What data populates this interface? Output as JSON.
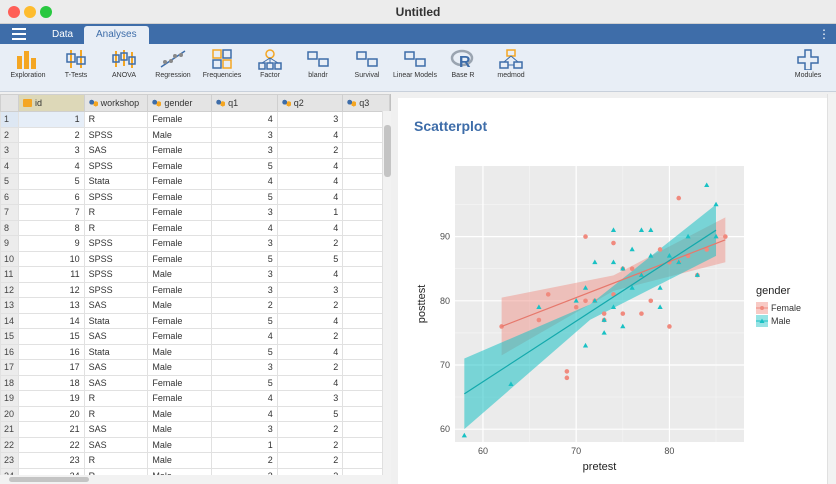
{
  "window": {
    "title": "Untitled",
    "traffic": [
      "#ff5f57",
      "#febc2e",
      "#28c840"
    ]
  },
  "topbar": {
    "tabs": [
      "Data",
      "Analyses"
    ],
    "active_tab": "Analyses",
    "accent": "#3e6da9"
  },
  "ribbon": {
    "items": [
      {
        "label": "Exploration",
        "icon": "bar-chart-icon"
      },
      {
        "label": "T-Tests",
        "icon": "t-test-icon"
      },
      {
        "label": "ANOVA",
        "icon": "anova-icon"
      },
      {
        "label": "Regression",
        "icon": "regression-icon"
      },
      {
        "label": "Frequencies",
        "icon": "frequencies-icon"
      },
      {
        "label": "Factor",
        "icon": "factor-icon"
      },
      {
        "label": "blandr",
        "icon": "blandr-icon"
      },
      {
        "label": "Survival",
        "icon": "survival-icon"
      },
      {
        "label": "Linear Models",
        "icon": "linear-models-icon"
      },
      {
        "label": "Base R",
        "icon": "r-logo-icon"
      },
      {
        "label": "medmod",
        "icon": "medmod-icon"
      }
    ],
    "modules_label": "Modules"
  },
  "grid": {
    "columns": [
      "id",
      "workshop",
      "gender",
      "q1",
      "q2",
      "q3"
    ],
    "rows": [
      [
        1,
        "R",
        "Female",
        4,
        3
      ],
      [
        2,
        "SPSS",
        "Male",
        3,
        4
      ],
      [
        3,
        "SAS",
        "Female",
        3,
        2
      ],
      [
        4,
        "SPSS",
        "Female",
        5,
        4
      ],
      [
        5,
        "Stata",
        "Female",
        4,
        4
      ],
      [
        6,
        "SPSS",
        "Female",
        5,
        4
      ],
      [
        7,
        "R",
        "Female",
        3,
        1
      ],
      [
        8,
        "R",
        "Female",
        4,
        4
      ],
      [
        9,
        "SPSS",
        "Female",
        3,
        2
      ],
      [
        10,
        "SPSS",
        "Female",
        5,
        5
      ],
      [
        11,
        "SPSS",
        "Male",
        3,
        4
      ],
      [
        12,
        "SPSS",
        "Female",
        3,
        3
      ],
      [
        13,
        "SAS",
        "Male",
        2,
        2
      ],
      [
        14,
        "Stata",
        "Female",
        5,
        4
      ],
      [
        15,
        "SAS",
        "Female",
        4,
        2
      ],
      [
        16,
        "Stata",
        "Male",
        5,
        4
      ],
      [
        17,
        "SAS",
        "Male",
        3,
        2
      ],
      [
        18,
        "SAS",
        "Female",
        5,
        4
      ],
      [
        19,
        "R",
        "Female",
        4,
        3
      ],
      [
        20,
        "R",
        "Male",
        4,
        5
      ],
      [
        21,
        "SAS",
        "Male",
        3,
        2
      ],
      [
        22,
        "SAS",
        "Male",
        1,
        2
      ],
      [
        23,
        "R",
        "Male",
        2,
        2
      ],
      [
        24,
        "R",
        "Male",
        3,
        2
      ]
    ]
  },
  "results": {
    "title": "Scatterplot"
  },
  "chart_data": {
    "type": "scatter",
    "xlabel": "pretest",
    "ylabel": "posttest",
    "xlim": [
      57,
      88
    ],
    "ylim": [
      58,
      101
    ],
    "xticks": [
      60,
      70,
      80
    ],
    "yticks": [
      60,
      70,
      80,
      90
    ],
    "legend_title": "gender",
    "legend_position": "right",
    "grid": true,
    "series": [
      {
        "name": "Female",
        "color": "#f08a7e",
        "marker": "circle",
        "points": [
          [
            62,
            76
          ],
          [
            66,
            77
          ],
          [
            67,
            81
          ],
          [
            69,
            69
          ],
          [
            69,
            68
          ],
          [
            70,
            79
          ],
          [
            71,
            90
          ],
          [
            71,
            80
          ],
          [
            72,
            80
          ],
          [
            73,
            77
          ],
          [
            73,
            78
          ],
          [
            74,
            89
          ],
          [
            74,
            81
          ],
          [
            75,
            85
          ],
          [
            75,
            78
          ],
          [
            76,
            85
          ],
          [
            77,
            84
          ],
          [
            77,
            78
          ],
          [
            78,
            80
          ],
          [
            79,
            88
          ],
          [
            80,
            86
          ],
          [
            80,
            76
          ],
          [
            81,
            96
          ],
          [
            81,
            86
          ],
          [
            82,
            87
          ],
          [
            83,
            84
          ],
          [
            84,
            88
          ],
          [
            86,
            90
          ]
        ],
        "fit": {
          "x1": 62,
          "y1": 76,
          "x2": 86,
          "y2": 89.5
        }
      },
      {
        "name": "Male",
        "color": "#19c1c4",
        "marker": "triangle",
        "points": [
          [
            58,
            59
          ],
          [
            63,
            67
          ],
          [
            66,
            79
          ],
          [
            70,
            80
          ],
          [
            71,
            73
          ],
          [
            71,
            82
          ],
          [
            72,
            86
          ],
          [
            72,
            80
          ],
          [
            73,
            77
          ],
          [
            73,
            75
          ],
          [
            74,
            91
          ],
          [
            74,
            86
          ],
          [
            74,
            79
          ],
          [
            75,
            85
          ],
          [
            75,
            76
          ],
          [
            76,
            88
          ],
          [
            76,
            82
          ],
          [
            77,
            91
          ],
          [
            77,
            84
          ],
          [
            78,
            91
          ],
          [
            78,
            87
          ],
          [
            79,
            82
          ],
          [
            79,
            79
          ],
          [
            80,
            87
          ],
          [
            81,
            86
          ],
          [
            82,
            90
          ],
          [
            83,
            84
          ],
          [
            84,
            98
          ],
          [
            85,
            95
          ],
          [
            85,
            90
          ]
        ],
        "fit": {
          "x1": 58,
          "y1": 65.5,
          "x2": 85,
          "y2": 91
        }
      }
    ]
  }
}
